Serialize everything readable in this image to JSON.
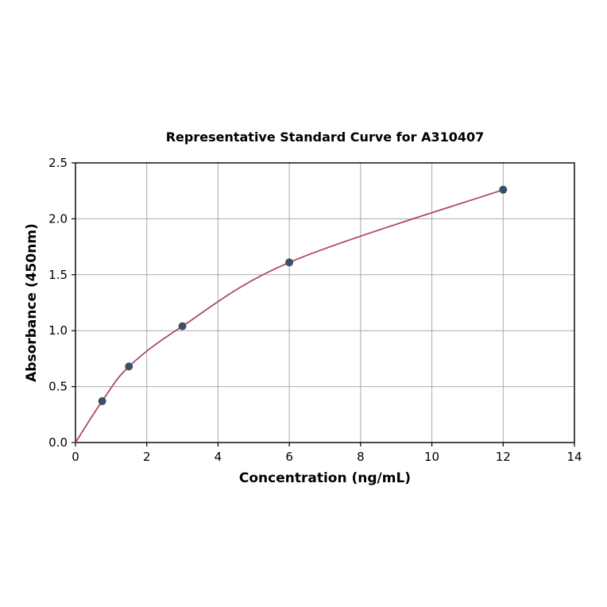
{
  "chart_data": {
    "type": "scatter",
    "title": "Representative Standard Curve for A310407",
    "xlabel": "Concentration (ng/mL)",
    "ylabel": "Absorbance (450nm)",
    "xlim": [
      0,
      14
    ],
    "ylim": [
      0,
      2.5
    ],
    "x_ticks": [
      0,
      2,
      4,
      6,
      8,
      10,
      12,
      14
    ],
    "x_tick_labels": [
      "0",
      "2",
      "4",
      "6",
      "8",
      "10",
      "12",
      "14"
    ],
    "y_ticks": [
      0,
      0.5,
      1.0,
      1.5,
      2.0,
      2.5
    ],
    "y_tick_labels": [
      "0.0",
      "0.5",
      "1.0",
      "1.5",
      "2.0",
      "2.5"
    ],
    "grid": true,
    "legend_position": "none",
    "points": {
      "x": [
        0.75,
        1.5,
        3,
        6,
        12
      ],
      "y": [
        0.37,
        0.68,
        1.04,
        1.61,
        2.26
      ]
    },
    "curve": {
      "x": [
        0,
        0.75,
        1.5,
        3,
        6,
        12
      ],
      "y": [
        0.0,
        0.37,
        0.68,
        1.04,
        1.61,
        2.26
      ],
      "color": "#b0486a"
    },
    "point_color": "#3d4e6d",
    "grid_color": "#aaaaaa",
    "axis_color": "#000000",
    "background_color": "#ffffff"
  }
}
